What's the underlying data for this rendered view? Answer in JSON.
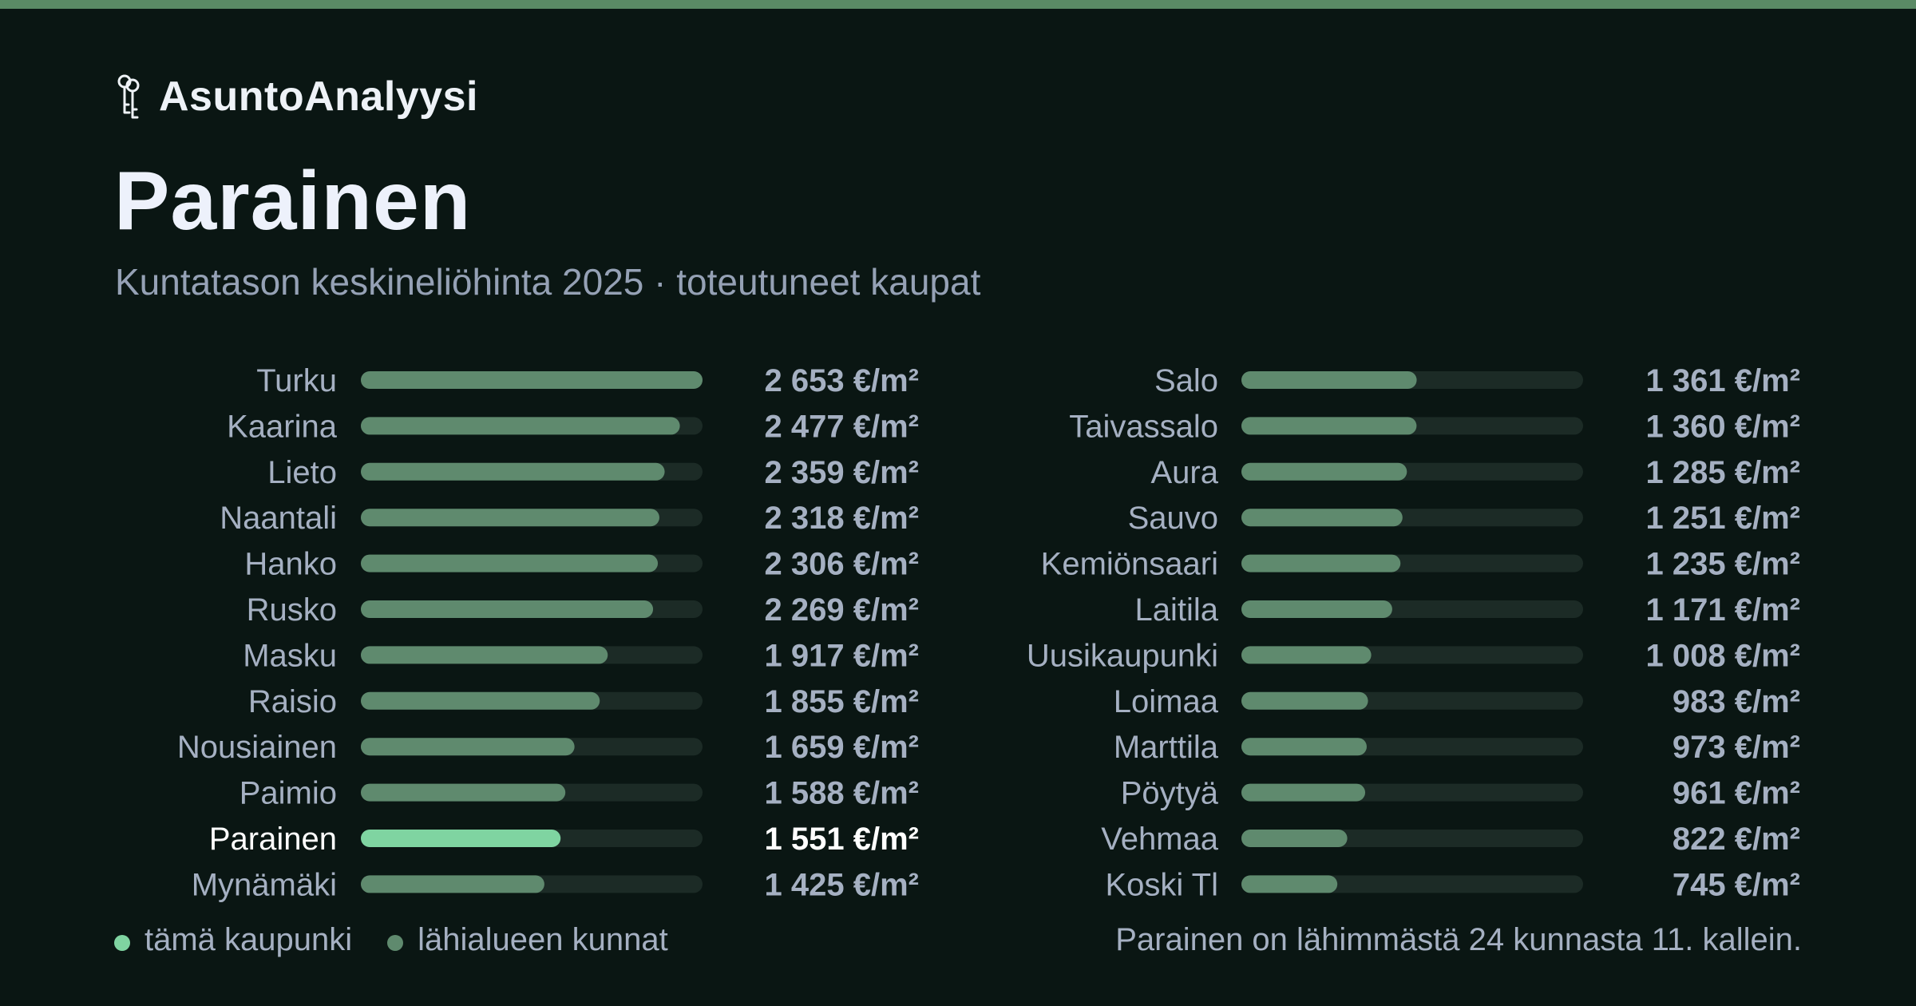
{
  "brand": {
    "name": "AsuntoAnalyysi",
    "icon": "keys-icon"
  },
  "header": {
    "title": "Parainen",
    "subtitle": "Kuntatason keskineliöhinta 2025 · toteutuneet kaupat"
  },
  "colors": {
    "background": "#0a1613",
    "top_bar": "#5a8a65",
    "highlight_bar": "#7fd4a1",
    "bar": "#5f8a6e",
    "track": "#1c2b26",
    "label": "#a5b0c2",
    "highlight_label": "#ffffff"
  },
  "chart_data": {
    "type": "bar",
    "orientation": "horizontal",
    "unit": "€/m²",
    "highlight": "Parainen",
    "value_suffix": " €/m²",
    "xlim": [
      0,
      2653
    ],
    "categories": [
      "Turku",
      "Kaarina",
      "Lieto",
      "Naantali",
      "Hanko",
      "Rusko",
      "Masku",
      "Raisio",
      "Nousiainen",
      "Paimio",
      "Parainen",
      "Mynämäki",
      "Salo",
      "Taivassalo",
      "Aura",
      "Sauvo",
      "Kemiönsaari",
      "Laitila",
      "Uusikaupunki",
      "Loimaa",
      "Marttila",
      "Pöytyä",
      "Vehmaa",
      "Koski Tl"
    ],
    "values": [
      2653,
      2477,
      2359,
      2318,
      2306,
      2269,
      1917,
      1855,
      1659,
      1588,
      1551,
      1425,
      1361,
      1360,
      1285,
      1251,
      1235,
      1171,
      1008,
      983,
      973,
      961,
      822,
      745
    ],
    "value_labels": [
      "2 653 €/m²",
      "2 477 €/m²",
      "2 359 €/m²",
      "2 318 €/m²",
      "2 306 €/m²",
      "2 269 €/m²",
      "1 917 €/m²",
      "1 855 €/m²",
      "1 659 €/m²",
      "1 588 €/m²",
      "1 551 €/m²",
      "1 425 €/m²",
      "1 361 €/m²",
      "1 360 €/m²",
      "1 285 €/m²",
      "1 251 €/m²",
      "1 235 €/m²",
      "1 171 €/m²",
      "1 008 €/m²",
      "983 €/m²",
      "973 €/m²",
      "961 €/m²",
      "822 €/m²",
      "745 €/m²"
    ]
  },
  "legend": {
    "this_city": "tämä kaupunki",
    "nearby": "lähialueen kunnat"
  },
  "rank_note": "Parainen on lähimmästä 24 kunnasta 11. kallein."
}
